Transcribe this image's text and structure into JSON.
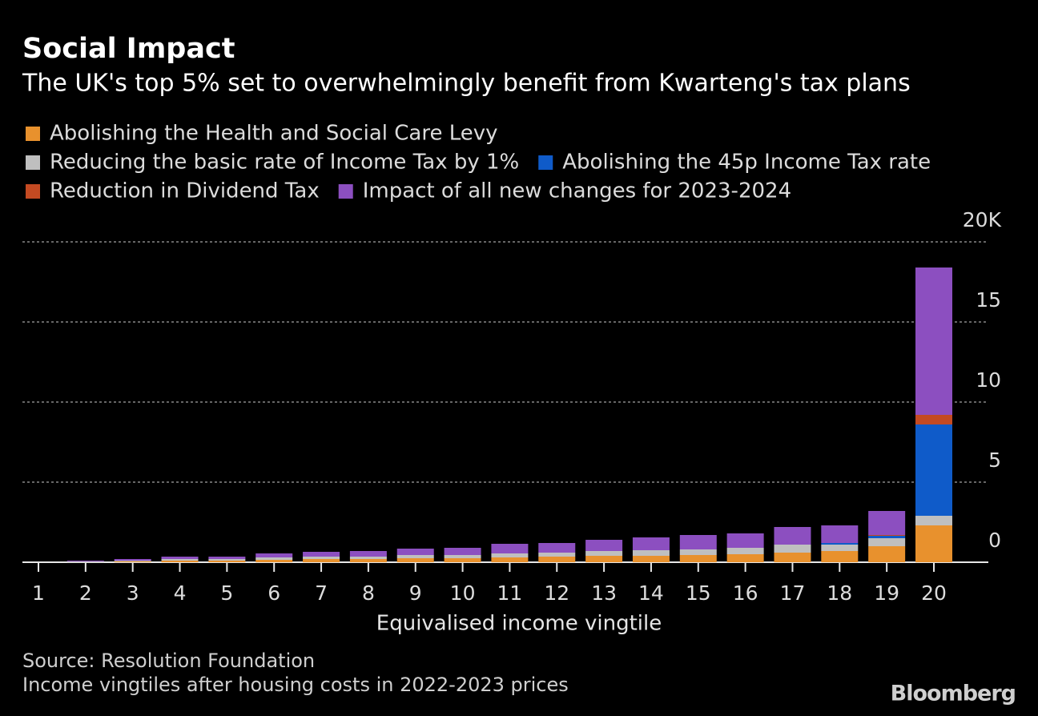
{
  "chart_data": {
    "type": "stacked_bar",
    "title": "Social Impact",
    "subtitle": "The UK's top 5% set to overwhelmingly benefit from Kwarteng's tax plans",
    "x_label": "Equivalised income vingtile",
    "source": "Source: Resolution Foundation",
    "note": "Income vingtiles after housing costs in 2022-2023 prices",
    "brand": "Bloomberg",
    "categories": [
      "1",
      "2",
      "3",
      "4",
      "5",
      "6",
      "7",
      "8",
      "9",
      "10",
      "11",
      "12",
      "13",
      "14",
      "15",
      "16",
      "17",
      "18",
      "19",
      "20"
    ],
    "series": [
      {
        "name": "Abolishing the Health and Social Care Levy",
        "color": "#e8912d",
        "values": [
          0,
          0,
          0.05,
          0.1,
          0.1,
          0.15,
          0.2,
          0.2,
          0.25,
          0.25,
          0.3,
          0.35,
          0.4,
          0.4,
          0.45,
          0.5,
          0.6,
          0.7,
          1.0,
          2.3
        ]
      },
      {
        "name": "Reducing the basic rate of Income Tax by 1%",
        "color": "#bfbfbf",
        "values": [
          0,
          0.05,
          0.05,
          0.1,
          0.1,
          0.15,
          0.15,
          0.15,
          0.2,
          0.2,
          0.25,
          0.25,
          0.3,
          0.35,
          0.35,
          0.4,
          0.5,
          0.4,
          0.5,
          0.6
        ]
      },
      {
        "name": "Abolishing the 45p Income Tax rate",
        "color": "#0f5bc9",
        "values": [
          0,
          0,
          0,
          0,
          0,
          0,
          0,
          0,
          0,
          0,
          0,
          0,
          0,
          0,
          0,
          0,
          0,
          0.1,
          0.15,
          5.7
        ]
      },
      {
        "name": "Reduction in Dividend Tax",
        "color": "#c44a22",
        "values": [
          0,
          0,
          0,
          0,
          0,
          0,
          0,
          0,
          0,
          0,
          0,
          0,
          0,
          0,
          0,
          0,
          0,
          0,
          0.05,
          0.6
        ]
      },
      {
        "name": "Impact of all new changes for 2023-2024",
        "color": "#8c4fc0",
        "values": [
          0,
          0.05,
          0.1,
          0.15,
          0.15,
          0.25,
          0.3,
          0.35,
          0.4,
          0.45,
          0.6,
          0.6,
          0.7,
          0.8,
          0.9,
          0.9,
          1.1,
          1.1,
          1.5,
          9.2
        ]
      }
    ],
    "ylim": [
      0,
      20
    ],
    "yticks": [
      0,
      5,
      10,
      15,
      {
        "value": 20,
        "label": "20K"
      }
    ],
    "grid": true
  }
}
